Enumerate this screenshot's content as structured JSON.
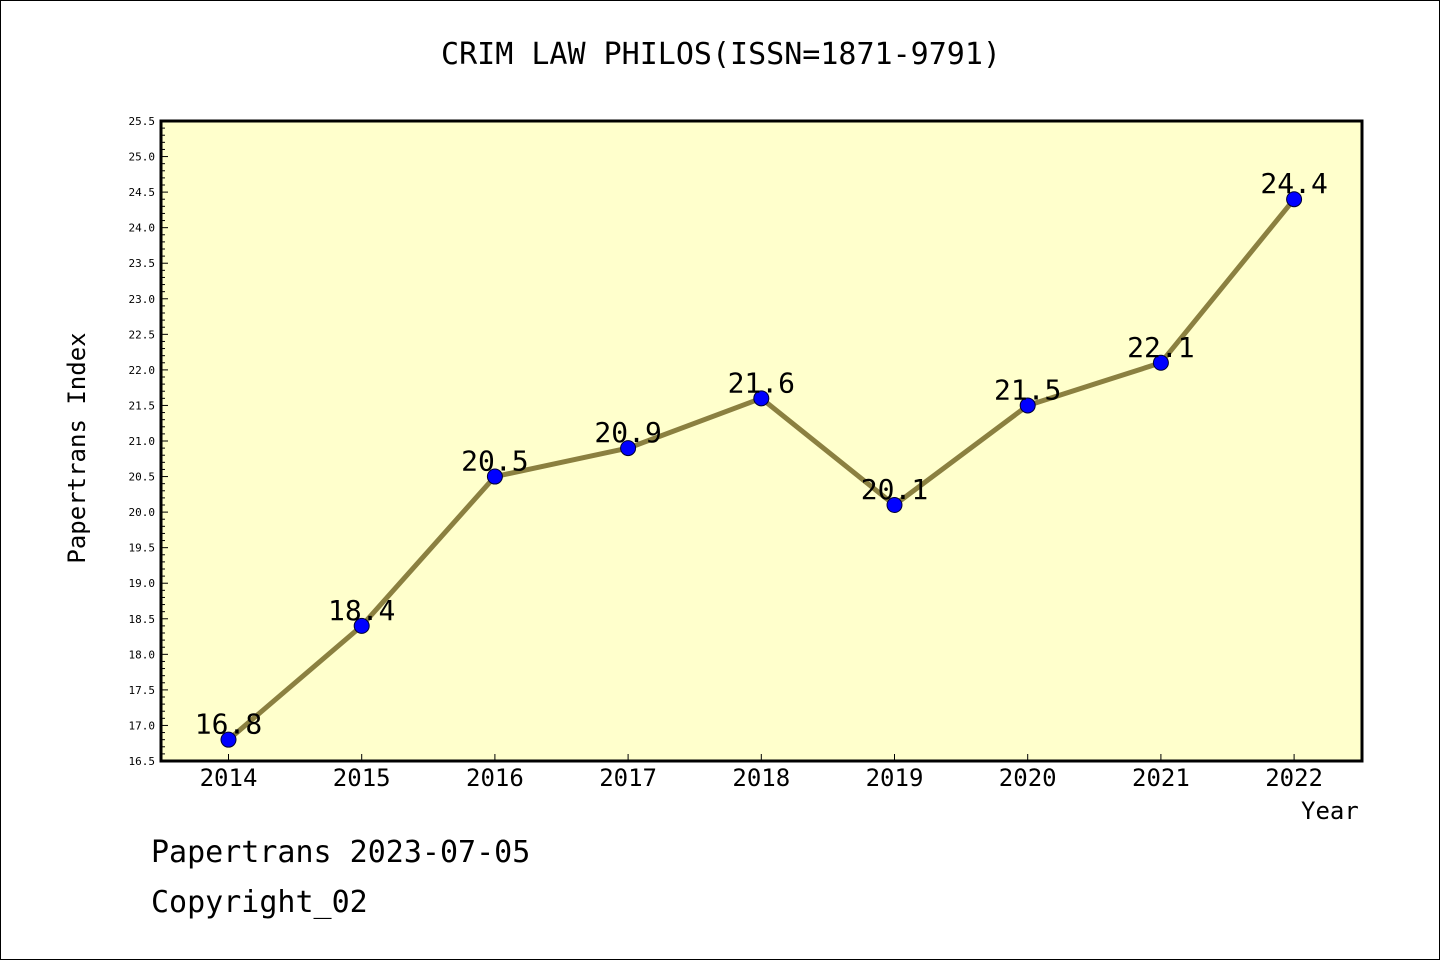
{
  "chart_data": {
    "type": "line",
    "title": "CRIM LAW PHILOS(ISSN=1871-9791)",
    "xlabel": "Year",
    "ylabel": "Papertrans Index",
    "categories": [
      "2014",
      "2015",
      "2016",
      "2017",
      "2018",
      "2019",
      "2020",
      "2021",
      "2022"
    ],
    "values": [
      16.8,
      18.4,
      20.5,
      20.9,
      21.6,
      20.1,
      21.5,
      22.1,
      24.4
    ],
    "value_labels": [
      "16.8",
      "18.4",
      "20.5",
      "20.9",
      "21.6",
      "20.1",
      "21.5",
      "22.1",
      "24.4"
    ],
    "ylim": [
      16.5,
      25.5
    ],
    "y_ticks": [
      "16.5",
      "17.0",
      "17.5",
      "18.0",
      "18.5",
      "19.0",
      "19.5",
      "20.0",
      "20.5",
      "21.0",
      "21.5",
      "22.0",
      "22.5",
      "23.0",
      "23.5",
      "24.0",
      "24.5",
      "25.0",
      "25.5"
    ],
    "grid": false,
    "legend": "none",
    "colors": {
      "plot_background": "#ffffcc",
      "line": "#8b8040",
      "marker": "#0000ff",
      "axis": "#000000"
    }
  },
  "footer": {
    "line1": "Papertrans 2023-07-05",
    "line2": "Copyright_02"
  }
}
